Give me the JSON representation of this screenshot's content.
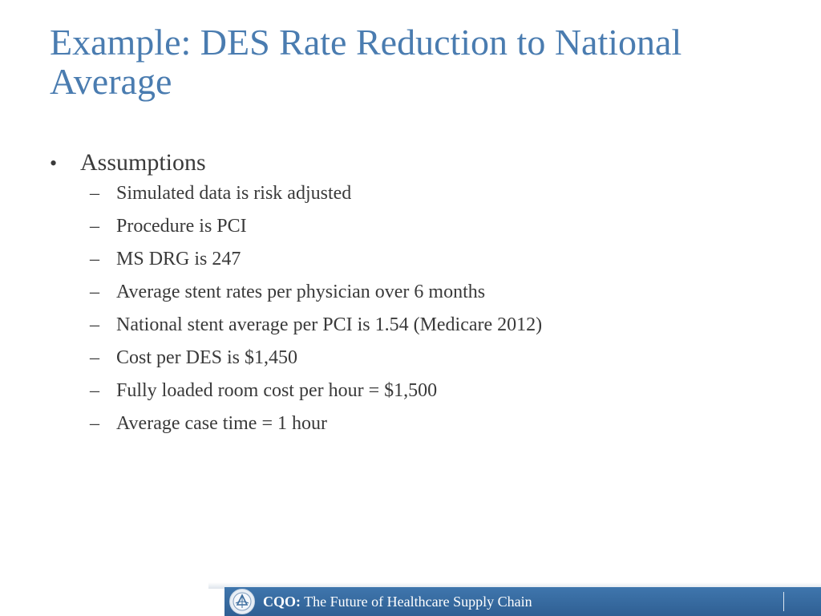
{
  "slide": {
    "title": "Example: DES Rate Reduction to National Average",
    "section": {
      "heading": "Assumptions",
      "bullet_mark": "•",
      "sub_mark": "–",
      "items": [
        "Simulated data is risk adjusted",
        "Procedure is PCI",
        "MS DRG is 247",
        "Average stent rates per physician over 6 months",
        "National stent average per PCI is  1.54 (Medicare 2012)",
        "Cost per DES is $1,450",
        "Fully loaded room cost per hour = $1,500",
        "Average case time = 1 hour"
      ]
    }
  },
  "footer": {
    "brand": "CQO:",
    "tagline": " The Future of Healthcare Supply Chain",
    "logo_icon": "cqo-emblem-icon",
    "colors": {
      "bar": "#3a6ea5",
      "text": "#ffffff"
    }
  },
  "colors": {
    "title": "#4a7cb0",
    "body_text": "#3a3a3a"
  }
}
